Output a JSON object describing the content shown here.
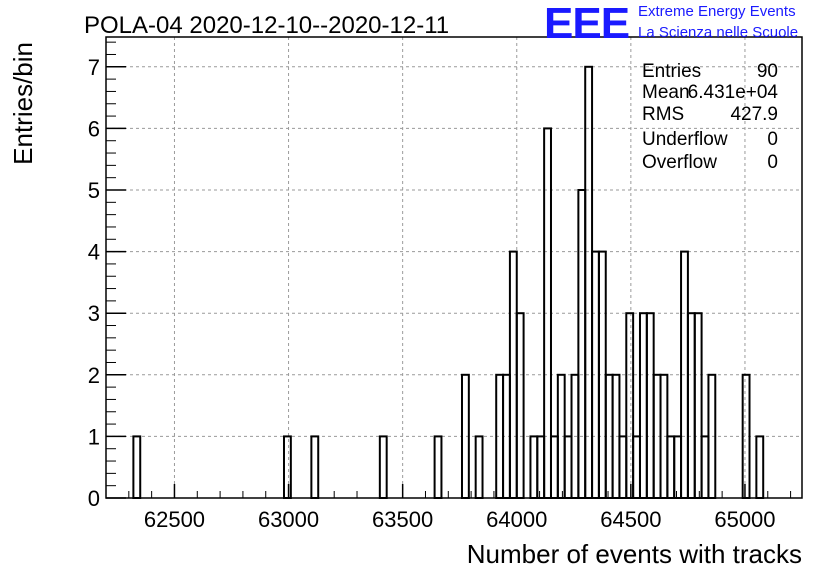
{
  "logo": {
    "mark": "EEE",
    "line1": "Extreme Energy Events",
    "line2": "La Scienza nelle Scuole",
    "color": "#1a1aff"
  },
  "stats": {
    "entries_label": "Entries",
    "entries_value": "90",
    "mean_label": "Mean",
    "mean_value": "6.431e+04",
    "rms_label": "RMS",
    "rms_value": "427.9",
    "underflow_label": "Underflow",
    "underflow_value": "0",
    "overflow_label": "Overflow",
    "overflow_value": "0"
  },
  "chart_data": {
    "type": "histogram",
    "title": "POLA-04 2020-12-10--2020-12-11",
    "xlabel": "Number of events with tracks",
    "ylabel": "Entries/bin",
    "xlim": [
      62200,
      65250
    ],
    "ylim": [
      0,
      7.5
    ],
    "xticks": [
      62500,
      63000,
      63500,
      64000,
      64500,
      65000
    ],
    "yticks": [
      0,
      1,
      2,
      3,
      4,
      5,
      6,
      7
    ],
    "grid": true,
    "bin_width": 30,
    "bins": [
      {
        "x": 62320,
        "count": 1
      },
      {
        "x": 62980,
        "count": 1
      },
      {
        "x": 63100,
        "count": 1
      },
      {
        "x": 63400,
        "count": 1
      },
      {
        "x": 63640,
        "count": 1
      },
      {
        "x": 63760,
        "count": 2
      },
      {
        "x": 63820,
        "count": 1
      },
      {
        "x": 63910,
        "count": 2
      },
      {
        "x": 63940,
        "count": 2
      },
      {
        "x": 63970,
        "count": 4
      },
      {
        "x": 64000,
        "count": 3
      },
      {
        "x": 64060,
        "count": 1
      },
      {
        "x": 64090,
        "count": 1
      },
      {
        "x": 64120,
        "count": 6
      },
      {
        "x": 64150,
        "count": 1
      },
      {
        "x": 64180,
        "count": 2
      },
      {
        "x": 64210,
        "count": 1
      },
      {
        "x": 64240,
        "count": 2
      },
      {
        "x": 64270,
        "count": 5
      },
      {
        "x": 64300,
        "count": 7
      },
      {
        "x": 64330,
        "count": 4
      },
      {
        "x": 64360,
        "count": 4
      },
      {
        "x": 64390,
        "count": 2
      },
      {
        "x": 64420,
        "count": 2
      },
      {
        "x": 64450,
        "count": 1
      },
      {
        "x": 64480,
        "count": 3
      },
      {
        "x": 64510,
        "count": 1
      },
      {
        "x": 64540,
        "count": 3
      },
      {
        "x": 64570,
        "count": 3
      },
      {
        "x": 64600,
        "count": 2
      },
      {
        "x": 64630,
        "count": 2
      },
      {
        "x": 64660,
        "count": 1
      },
      {
        "x": 64690,
        "count": 1
      },
      {
        "x": 64720,
        "count": 4
      },
      {
        "x": 64750,
        "count": 3
      },
      {
        "x": 64780,
        "count": 3
      },
      {
        "x": 64810,
        "count": 1
      },
      {
        "x": 64840,
        "count": 2
      },
      {
        "x": 64990,
        "count": 2
      },
      {
        "x": 65050,
        "count": 1
      }
    ]
  }
}
